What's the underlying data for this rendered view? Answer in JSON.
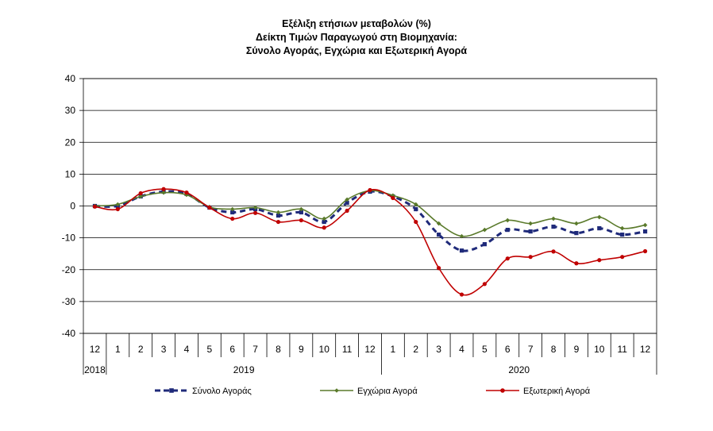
{
  "chart_data": {
    "type": "line",
    "title_lines": [
      "Εξέλιξη ετήσιων μεταβολών (%)",
      "Δείκτη Τιμών Παραγωγού στη Βιομηχανία:",
      "Σύνολο Αγοράς, Εγχώρια και Εξωτερική Αγορά"
    ],
    "ylim": [
      -40,
      40
    ],
    "yticks": [
      "40",
      "30",
      "20",
      "10",
      "0",
      "-10",
      "-20",
      "-30",
      "-40"
    ],
    "grid": "horizontal",
    "legend_position": "bottom",
    "categories": [
      "12",
      "1",
      "2",
      "3",
      "4",
      "5",
      "6",
      "7",
      "8",
      "9",
      "10",
      "11",
      "12",
      "1",
      "2",
      "3",
      "4",
      "5",
      "6",
      "7",
      "8",
      "9",
      "10",
      "11",
      "12"
    ],
    "years": [
      {
        "label": "2018",
        "start": 0,
        "end": 0
      },
      {
        "label": "2019",
        "start": 1,
        "end": 12
      },
      {
        "label": "2020",
        "start": 13,
        "end": 24
      }
    ],
    "series": [
      {
        "name": "Σύνολο Αγοράς",
        "color": "#1f2a7a",
        "style": "dashed",
        "marker": "square",
        "values": [
          0.0,
          0.0,
          3.0,
          4.5,
          3.8,
          -0.5,
          -2.0,
          -1.0,
          -3.0,
          -2.0,
          -5.0,
          1.0,
          4.5,
          3.0,
          -1.0,
          -9.0,
          -14.0,
          -12.0,
          -7.5,
          -8.0,
          -6.5,
          -8.5,
          -7.0,
          -9.0,
          -8.0
        ]
      },
      {
        "name": "Εγχώρια Αγορά",
        "color": "#5a7a2b",
        "style": "solid",
        "marker": "diamond",
        "values": [
          0.0,
          0.5,
          3.0,
          4.2,
          3.5,
          -0.3,
          -1.0,
          -0.5,
          -2.0,
          -1.0,
          -4.0,
          2.0,
          4.8,
          3.3,
          0.5,
          -5.5,
          -9.5,
          -7.5,
          -4.5,
          -5.5,
          -4.0,
          -5.5,
          -3.5,
          -7.0,
          -6.0
        ]
      },
      {
        "name": "Εξωτερική Αγορά",
        "color": "#c00000",
        "style": "solid",
        "marker": "circle",
        "values": [
          -0.2,
          -1.0,
          4.0,
          5.3,
          4.2,
          -0.5,
          -4.0,
          -2.2,
          -5.0,
          -4.5,
          -6.8,
          -1.5,
          5.0,
          2.5,
          -5.0,
          -19.5,
          -27.8,
          -24.5,
          -16.5,
          -16.0,
          -14.3,
          -18.0,
          -17.0,
          -16.0,
          -14.2
        ]
      }
    ]
  }
}
